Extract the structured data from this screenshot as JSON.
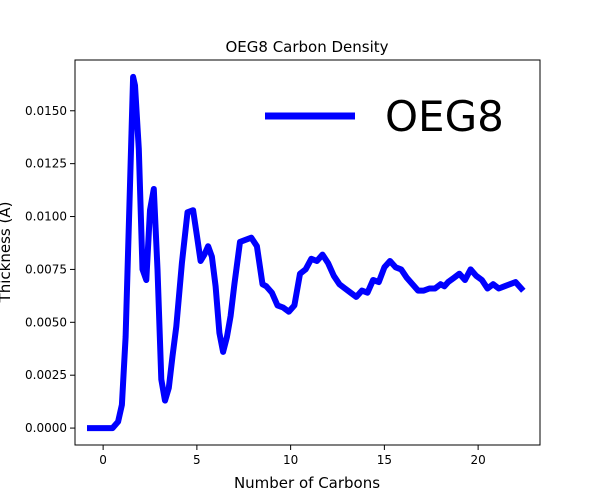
{
  "chart_data": {
    "type": "line",
    "title": "OEG8 Carbon Density",
    "xlabel": "Number of Carbons",
    "ylabel": "Thickness (Å)",
    "xlim": [
      -1.5,
      23.3
    ],
    "ylim": [
      -0.0008,
      0.0174
    ],
    "xticks": [
      0,
      5,
      10,
      15,
      20
    ],
    "xtick_labels": [
      "0",
      "5",
      "10",
      "15",
      "20"
    ],
    "yticks": [
      0.0,
      0.0025,
      0.005,
      0.0075,
      0.01,
      0.0125,
      0.015
    ],
    "ytick_labels": [
      "0.0000",
      "0.0025",
      "0.0050",
      "0.0075",
      "0.0100",
      "0.0125",
      "0.0150"
    ],
    "grid": false,
    "legend_position": "top-right",
    "series": [
      {
        "name": "OEG8",
        "color": "#0000ff",
        "x": [
          -0.7,
          0.5,
          0.8,
          1.0,
          1.2,
          1.4,
          1.6,
          1.7,
          1.9,
          2.1,
          2.3,
          2.5,
          2.7,
          2.9,
          3.1,
          3.3,
          3.5,
          3.7,
          3.9,
          4.2,
          4.5,
          4.8,
          5.0,
          5.2,
          5.4,
          5.6,
          5.8,
          6.0,
          6.2,
          6.4,
          6.6,
          6.8,
          7.0,
          7.3,
          7.6,
          7.9,
          8.2,
          8.5,
          8.7,
          9.0,
          9.3,
          9.6,
          9.9,
          10.2,
          10.5,
          10.8,
          11.1,
          11.4,
          11.7,
          12.0,
          12.3,
          12.6,
          12.9,
          13.2,
          13.5,
          13.8,
          14.1,
          14.4,
          14.7,
          15.0,
          15.3,
          15.6,
          15.9,
          16.2,
          16.5,
          16.8,
          17.1,
          17.4,
          17.7,
          18.0,
          18.2,
          18.4,
          18.7,
          19.0,
          19.3,
          19.6,
          19.9,
          20.2,
          20.5,
          20.8,
          21.1,
          21.4,
          21.7,
          22.0,
          22.3
        ],
        "y": [
          0.0,
          0.0,
          0.0003,
          0.0011,
          0.0043,
          0.0105,
          0.0166,
          0.0162,
          0.0132,
          0.0075,
          0.007,
          0.0103,
          0.0113,
          0.0075,
          0.0023,
          0.0013,
          0.0019,
          0.0034,
          0.0048,
          0.0078,
          0.0102,
          0.0103,
          0.0091,
          0.0079,
          0.0082,
          0.0086,
          0.0081,
          0.0067,
          0.0045,
          0.0036,
          0.0043,
          0.0053,
          0.0068,
          0.0088,
          0.0089,
          0.009,
          0.0086,
          0.0068,
          0.0067,
          0.0064,
          0.0058,
          0.0057,
          0.0055,
          0.0058,
          0.0073,
          0.0075,
          0.008,
          0.0079,
          0.0082,
          0.0078,
          0.0072,
          0.0068,
          0.0066,
          0.0064,
          0.0062,
          0.0065,
          0.0064,
          0.007,
          0.0069,
          0.0076,
          0.0079,
          0.0076,
          0.0075,
          0.0071,
          0.0068,
          0.0065,
          0.0065,
          0.0066,
          0.0066,
          0.0068,
          0.0067,
          0.0069,
          0.0071,
          0.0073,
          0.007,
          0.0075,
          0.0072,
          0.007,
          0.0066,
          0.0068,
          0.0066,
          0.0067,
          0.0068,
          0.0069,
          0.0066
        ]
      }
    ]
  }
}
